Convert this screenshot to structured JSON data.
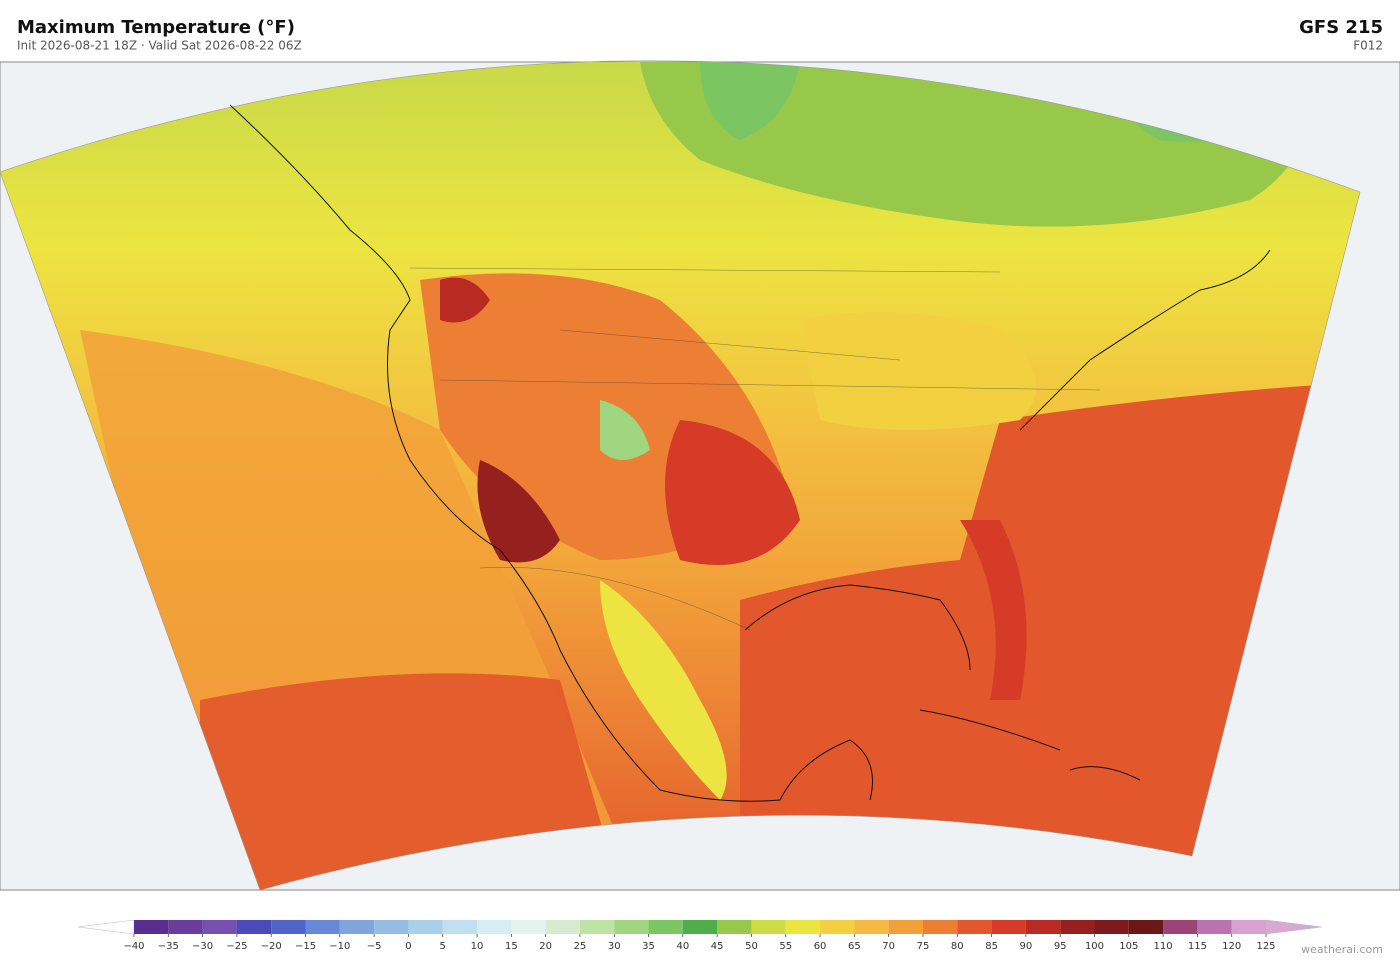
{
  "header": {
    "title": "Maximum Temperature  (°F)",
    "subtitle": "Init 2026-08-21 18Z   ·   Valid Sat 2026-08-22 06Z",
    "model": "GFS  215",
    "forecast_hour": "F012"
  },
  "colorbar": {
    "ticks": [
      {
        "value": -40,
        "label": "−40"
      },
      {
        "value": -35,
        "label": "−35"
      },
      {
        "value": -30,
        "label": "−30"
      },
      {
        "value": -25,
        "label": "−25"
      },
      {
        "value": -20,
        "label": "−20"
      },
      {
        "value": -15,
        "label": "−15"
      },
      {
        "value": -10,
        "label": "−10"
      },
      {
        "value": -5,
        "label": "−5"
      },
      0,
      5,
      10,
      15,
      20,
      25,
      30,
      35,
      40,
      45,
      50,
      55,
      60,
      65,
      70,
      75,
      80,
      85,
      90,
      95,
      100,
      105,
      110,
      115,
      120,
      125
    ],
    "colors": [
      "#5a2d91",
      "#6a3d9a",
      "#7650b0",
      "#4a4ab8",
      "#4f63c9",
      "#6888d8",
      "#7fa5dc",
      "#95bde3",
      "#a8d0ea",
      "#c0e0ef",
      "#d6eef2",
      "#e4f3ee",
      "#d5ecd0",
      "#bde4a5",
      "#9fd67f",
      "#7cc563",
      "#4fae4a",
      "#97c84a",
      "#cedc45",
      "#ece541",
      "#f3d040",
      "#f4b940",
      "#f2a13a",
      "#ec7f34",
      "#e2572b",
      "#d53b26",
      "#b82a22",
      "#96201d",
      "#7d1a1d",
      "#6d1618",
      "#9b4477",
      "#bc72b2",
      "#d8a1cf"
    ],
    "under_color": "#ffffff",
    "over_color": "#d8a8d4"
  },
  "credit": "weatherai.com"
}
